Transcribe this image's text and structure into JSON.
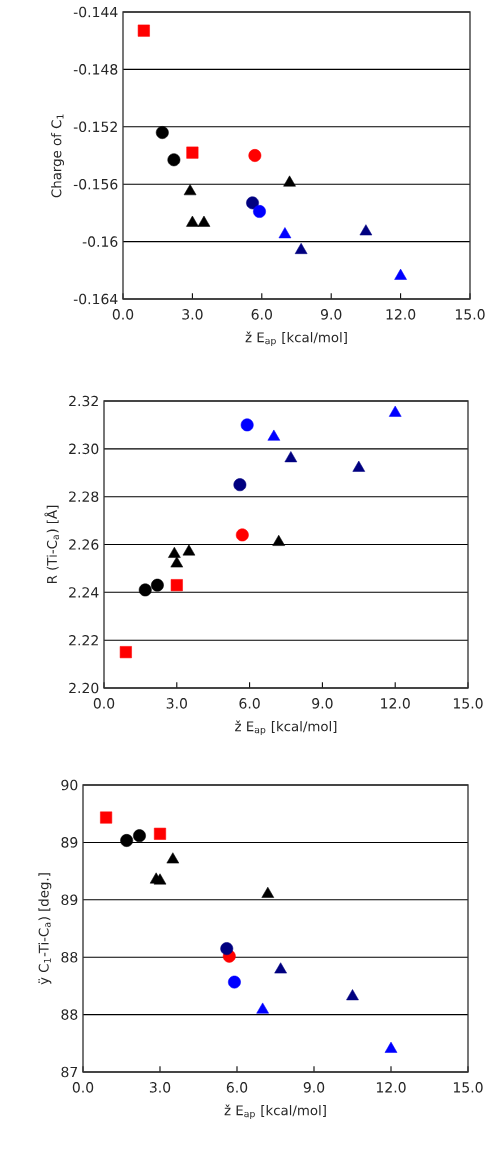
{
  "chart_data": [
    {
      "type": "scatter",
      "xlabel": "ž E$_{ap}$ [kcal/mol]",
      "ylabel": "Charge of C$_{1}$",
      "xlim": [
        0,
        15
      ],
      "xticks": [
        {
          "value": 0,
          "label": "0.0"
        },
        {
          "value": 3,
          "label": "3.0"
        },
        {
          "value": 6,
          "label": "6.0"
        },
        {
          "value": 9,
          "label": "9.0"
        },
        {
          "value": 12,
          "label": "12.0"
        },
        {
          "value": 15,
          "label": "15.0"
        }
      ],
      "ylim": [
        -0.164,
        -0.144
      ],
      "yticks": [
        -0.164,
        -0.16,
        -0.156,
        -0.152,
        -0.148,
        -0.144
      ],
      "grid": "y",
      "series": [
        {
          "color": "#ff0000",
          "marker": "square",
          "x": [
            0.9,
            3.0
          ],
          "values": [
            -0.1453,
            -0.1538
          ]
        },
        {
          "color": "#000000",
          "marker": "circle",
          "x": [
            1.7,
            2.2
          ],
          "values": [
            -0.1524,
            -0.1543
          ]
        },
        {
          "color": "#ff0000",
          "marker": "circle",
          "x": [
            5.7
          ],
          "values": [
            -0.154
          ]
        },
        {
          "color": "#000000",
          "marker": "triangle",
          "x": [
            2.9,
            3.0,
            3.5,
            7.2
          ],
          "values": [
            -0.1565,
            -0.1587,
            -0.1587,
            -0.1559
          ]
        },
        {
          "color": "#000080",
          "marker": "circle",
          "x": [
            5.6
          ],
          "values": [
            -0.1573
          ]
        },
        {
          "color": "#0000ff",
          "marker": "circle",
          "x": [
            5.9
          ],
          "values": [
            -0.1579
          ]
        },
        {
          "color": "#0000ff",
          "marker": "triangle",
          "x": [
            7.0,
            12.0
          ],
          "values": [
            -0.1595,
            -0.1624
          ]
        },
        {
          "color": "#000080",
          "marker": "triangle",
          "x": [
            7.7,
            10.5
          ],
          "values": [
            -0.1606,
            -0.1593
          ]
        }
      ]
    },
    {
      "type": "scatter",
      "xlabel": "ž E$_{ap}$ [kcal/mol]",
      "ylabel": "R (Ti-C$_{a}$) [Å]",
      "xlim": [
        0,
        15
      ],
      "xticks": [
        {
          "value": 0,
          "label": "0.0"
        },
        {
          "value": 3,
          "label": "3.0"
        },
        {
          "value": 6,
          "label": "6.0"
        },
        {
          "value": 9,
          "label": "9.0"
        },
        {
          "value": 12,
          "label": "12.0"
        },
        {
          "value": 15,
          "label": "15.0"
        }
      ],
      "ylim": [
        2.2,
        2.32
      ],
      "yticks": [
        {
          "value": 2.2,
          "label": "2.20"
        },
        {
          "value": 2.22,
          "label": "2.22"
        },
        {
          "value": 2.24,
          "label": "2.24"
        },
        {
          "value": 2.26,
          "label": "2.26"
        },
        {
          "value": 2.28,
          "label": "2.28"
        },
        {
          "value": 2.3,
          "label": "2.30"
        },
        {
          "value": 2.32,
          "label": "2.32"
        }
      ],
      "grid": "y",
      "series": [
        {
          "color": "#ff0000",
          "marker": "square",
          "x": [
            0.9,
            3.0
          ],
          "values": [
            2.215,
            2.243
          ]
        },
        {
          "color": "#000000",
          "marker": "circle",
          "x": [
            1.7,
            2.2
          ],
          "values": [
            2.241,
            2.243
          ]
        },
        {
          "color": "#ff0000",
          "marker": "circle",
          "x": [
            5.7
          ],
          "values": [
            2.264
          ]
        },
        {
          "color": "#000000",
          "marker": "triangle",
          "x": [
            2.9,
            3.0,
            3.5,
            7.2
          ],
          "values": [
            2.256,
            2.252,
            2.257,
            2.261
          ]
        },
        {
          "color": "#000080",
          "marker": "circle",
          "x": [
            5.6
          ],
          "values": [
            2.285
          ]
        },
        {
          "color": "#0000ff",
          "marker": "circle",
          "x": [
            5.9
          ],
          "values": [
            2.31
          ]
        },
        {
          "color": "#0000ff",
          "marker": "triangle",
          "x": [
            7.0,
            12.0
          ],
          "values": [
            2.305,
            2.315
          ]
        },
        {
          "color": "#000080",
          "marker": "triangle",
          "x": [
            7.7,
            10.5
          ],
          "values": [
            2.296,
            2.292
          ]
        }
      ]
    },
    {
      "type": "scatter",
      "xlabel": "ž E$_{ap}$ [kcal/mol]",
      "ylabel": "ÿ C$_{1}$-Ti-C$_{a}$) [deg.]",
      "xlim": [
        0,
        15
      ],
      "xticks": [
        {
          "value": 0,
          "label": "0.0"
        },
        {
          "value": 3,
          "label": "3.0"
        },
        {
          "value": 6,
          "label": "6.0"
        },
        {
          "value": 9,
          "label": "9.0"
        },
        {
          "value": 12,
          "label": "12.0"
        },
        {
          "value": 15,
          "label": "15.0"
        }
      ],
      "ylim": [
        87,
        90
      ],
      "yticks": [
        87,
        {
          "value": 87.6,
          "label": "88"
        },
        {
          "value": 88.2,
          "label": "88"
        },
        {
          "value": 88.8,
          "label": "89"
        },
        {
          "value": 89.4,
          "label": "89"
        },
        90
      ],
      "grid": "y",
      "series": [
        {
          "color": "#ff0000",
          "marker": "square",
          "x": [
            0.9,
            3.0
          ],
          "values": [
            89.66,
            89.49
          ]
        },
        {
          "color": "#000000",
          "marker": "circle",
          "x": [
            1.7,
            2.2
          ],
          "values": [
            89.42,
            89.47
          ]
        },
        {
          "color": "#ff0000",
          "marker": "circle",
          "x": [
            5.7
          ],
          "values": [
            88.21
          ]
        },
        {
          "color": "#000000",
          "marker": "triangle",
          "x": [
            2.85,
            3.0,
            3.5,
            7.2
          ],
          "values": [
            89.01,
            89.0,
            89.22,
            88.86
          ]
        },
        {
          "color": "#000080",
          "marker": "circle",
          "x": [
            5.6
          ],
          "values": [
            88.29
          ]
        },
        {
          "color": "#0000ff",
          "marker": "circle",
          "x": [
            5.9
          ],
          "values": [
            87.94
          ]
        },
        {
          "color": "#0000ff",
          "marker": "triangle",
          "x": [
            7.0,
            12.0
          ],
          "values": [
            87.65,
            87.24
          ]
        },
        {
          "color": "#000080",
          "marker": "triangle",
          "x": [
            7.7,
            10.5
          ],
          "values": [
            88.07,
            87.79
          ]
        }
      ]
    }
  ]
}
